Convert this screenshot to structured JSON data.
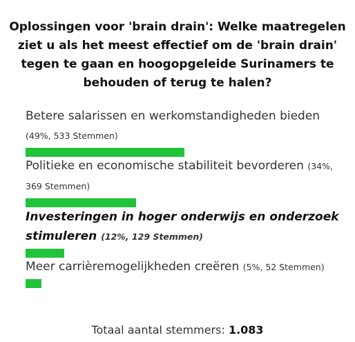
{
  "title": "Oplossingen voor 'brain drain': Welke maatregelen ziet u als het meest effectief om de 'brain drain' tegen te gaan en hoogopgeleide Surinamers te behouden of terug te halen?",
  "total_label": "Totaal aantal stemmers:",
  "total_value": "1.083",
  "accent_color": "#21c33a",
  "chart_data": {
    "type": "bar",
    "orientation": "horizontal",
    "title": "Oplossingen voor 'brain drain': Welke maatregelen ziet u als het meest effectief om de 'brain drain' tegen te gaan en hoogopgeleide Surinamers te behouden of terug te halen?",
    "categories": [
      "Betere salarissen en werkomstandigheden bieden",
      "Politieke en economische stabiliteit bevorderen",
      "Investeringen in hoger onderwijs en onderzoek stimuleren",
      "Meer carrièremogelijkheden creëren"
    ],
    "values": [
      49,
      34,
      12,
      5
    ],
    "votes": [
      533,
      369,
      129,
      52
    ],
    "stats_labels": [
      "(49%, 533 Stemmen)",
      "(34%, 369 Stemmen)",
      "(12%, 129 Stemmen)",
      "(5%, 52 Stemmen)"
    ],
    "highlighted_index": 2,
    "xlim": [
      0,
      100
    ],
    "grid": false,
    "legend": "none"
  }
}
